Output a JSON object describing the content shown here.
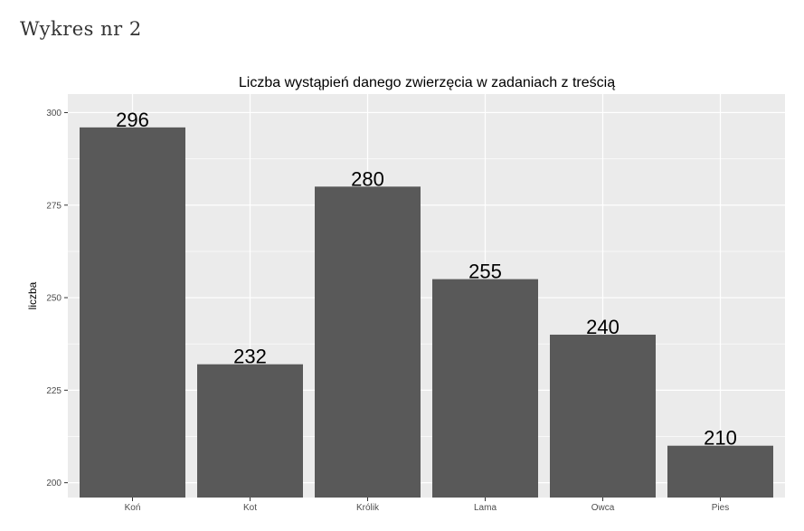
{
  "page": {
    "heading": "Wykres nr 2"
  },
  "colors": {
    "panel_bg": "#ebebeb",
    "grid_major": "#ffffff",
    "bar_fill": "#595959",
    "tick_text": "#4d4d4d"
  },
  "chart_data": {
    "type": "bar",
    "title": "Liczba wystąpień danego zwierzęcia w zadaniach z treścią",
    "xlabel": "",
    "ylabel": "liczba",
    "categories": [
      "Koń",
      "Kot",
      "Królik",
      "Lama",
      "Owca",
      "Pies"
    ],
    "values": [
      296,
      232,
      280,
      255,
      240,
      210
    ],
    "ylim": [
      196,
      305
    ],
    "yticks": [
      200,
      225,
      250,
      275,
      300
    ],
    "grid": true,
    "legend": "none"
  }
}
